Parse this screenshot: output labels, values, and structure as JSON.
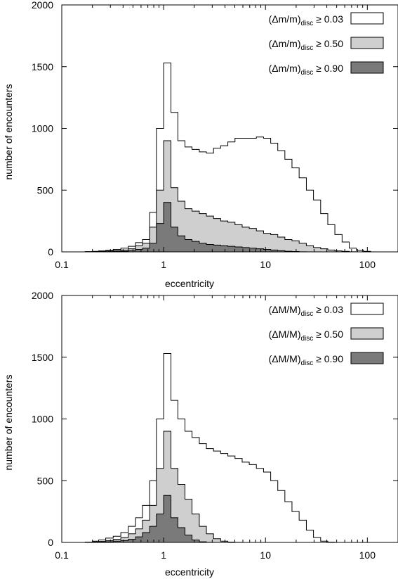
{
  "chart_data": [
    {
      "type": "histogram",
      "xlabel": "eccentricity",
      "ylabel": "number of encounters",
      "xscale": "log",
      "xlim": [
        0.1,
        200
      ],
      "ylim": [
        0,
        2000
      ],
      "xticks": [
        "0.1",
        "1",
        "10",
        "100"
      ],
      "yticks": [
        "0",
        "500",
        "1000",
        "1500",
        "2000"
      ],
      "grid": false,
      "legend_position": "top-right",
      "bin_edges": [
        0.1,
        0.12,
        0.14,
        0.17,
        0.2,
        0.23,
        0.27,
        0.32,
        0.38,
        0.45,
        0.53,
        0.62,
        0.73,
        0.85,
        1.0,
        1.18,
        1.38,
        1.62,
        1.9,
        2.24,
        2.63,
        3.09,
        3.63,
        4.27,
        5.02,
        5.9,
        6.93,
        8.14,
        9.57,
        11.25,
        13.2,
        15.5,
        18.2,
        21.4,
        25.2,
        29.6,
        34.8,
        40.9,
        48.0,
        56.5,
        66.4,
        78.0,
        91.6,
        107.7,
        126.5,
        148.7,
        174.8,
        200.0
      ],
      "legend": [
        {
          "prefix": "(Δm/m)",
          "sub": "disc",
          "suffix": " ≥ 0.03"
        },
        {
          "prefix": "(Δm/m)",
          "sub": "disc",
          "suffix": " ≥ 0.50"
        },
        {
          "prefix": "(Δm/m)",
          "sub": "disc",
          "suffix": " ≥ 0.90"
        }
      ],
      "series": [
        {
          "fill": "#ffffff",
          "values": [
            0,
            0,
            0,
            2,
            4,
            8,
            12,
            20,
            30,
            45,
            75,
            100,
            320,
            1000,
            1530,
            1130,
            900,
            850,
            830,
            810,
            800,
            840,
            860,
            890,
            920,
            920,
            920,
            930,
            920,
            880,
            820,
            750,
            680,
            600,
            500,
            420,
            310,
            220,
            140,
            80,
            30,
            12,
            4,
            0,
            0,
            0,
            0
          ]
        },
        {
          "fill": "#cfcfcf",
          "values": [
            0,
            0,
            0,
            1,
            2,
            4,
            8,
            10,
            15,
            25,
            50,
            70,
            200,
            500,
            900,
            520,
            410,
            350,
            330,
            310,
            290,
            270,
            250,
            240,
            220,
            200,
            190,
            170,
            150,
            140,
            120,
            100,
            90,
            70,
            50,
            35,
            25,
            15,
            8,
            4,
            1,
            0,
            0,
            0,
            0,
            0,
            0
          ]
        },
        {
          "fill": "#7a7a7a",
          "values": [
            0,
            0,
            0,
            0,
            0,
            1,
            2,
            4,
            5,
            10,
            20,
            30,
            70,
            230,
            400,
            200,
            130,
            100,
            85,
            70,
            60,
            55,
            50,
            45,
            40,
            35,
            30,
            25,
            20,
            15,
            10,
            5,
            3,
            1,
            0,
            0,
            0,
            0,
            0,
            0,
            0,
            0,
            0,
            0,
            0,
            0,
            0
          ]
        }
      ]
    },
    {
      "type": "histogram",
      "xlabel": "eccentricity",
      "ylabel": "number of encounters",
      "xscale": "log",
      "xlim": [
        0.1,
        200
      ],
      "ylim": [
        0,
        2000
      ],
      "xticks": [
        "0.1",
        "1",
        "10",
        "100"
      ],
      "yticks": [
        "0",
        "500",
        "1000",
        "1500",
        "2000"
      ],
      "grid": false,
      "legend_position": "top-right",
      "bin_edges": [
        0.1,
        0.12,
        0.14,
        0.17,
        0.2,
        0.23,
        0.27,
        0.32,
        0.38,
        0.45,
        0.53,
        0.62,
        0.73,
        0.85,
        1.0,
        1.18,
        1.38,
        1.62,
        1.9,
        2.24,
        2.63,
        3.09,
        3.63,
        4.27,
        5.02,
        5.9,
        6.93,
        8.14,
        9.57,
        11.25,
        13.2,
        15.5,
        18.2,
        21.4,
        25.2,
        29.6,
        34.8,
        40.9,
        48.0,
        56.5,
        66.4,
        78.0,
        91.6,
        107.7,
        126.5,
        148.7,
        174.8,
        200.0
      ],
      "legend": [
        {
          "prefix": "(ΔM/M)",
          "sub": "disc",
          "suffix": " ≥ 0.03"
        },
        {
          "prefix": "(ΔM/M)",
          "sub": "disc",
          "suffix": " ≥ 0.50"
        },
        {
          "prefix": "(ΔM/M)",
          "sub": "disc",
          "suffix": " ≥ 0.90"
        }
      ],
      "series": [
        {
          "fill": "#ffffff",
          "values": [
            0,
            0,
            0,
            3,
            10,
            20,
            35,
            50,
            80,
            130,
            200,
            300,
            500,
            1000,
            1530,
            1150,
            1000,
            900,
            850,
            800,
            760,
            740,
            720,
            700,
            680,
            650,
            630,
            600,
            570,
            500,
            420,
            330,
            250,
            180,
            100,
            40,
            10,
            2,
            0,
            0,
            0,
            0,
            0,
            0,
            0,
            0,
            0
          ]
        },
        {
          "fill": "#cfcfcf",
          "values": [
            0,
            0,
            0,
            1,
            4,
            8,
            15,
            25,
            40,
            70,
            110,
            180,
            300,
            600,
            900,
            600,
            470,
            350,
            230,
            130,
            70,
            30,
            10,
            3,
            1,
            0,
            0,
            0,
            0,
            0,
            0,
            0,
            0,
            0,
            0,
            0,
            0,
            0,
            0,
            0,
            0,
            0,
            0,
            0,
            0,
            0,
            0
          ]
        },
        {
          "fill": "#7a7a7a",
          "values": [
            0,
            0,
            0,
            0,
            1,
            3,
            6,
            10,
            15,
            25,
            45,
            80,
            130,
            230,
            380,
            200,
            120,
            60,
            20,
            5,
            1,
            0,
            0,
            0,
            0,
            0,
            0,
            0,
            0,
            0,
            0,
            0,
            0,
            0,
            0,
            0,
            0,
            0,
            0,
            0,
            0,
            0,
            0,
            0,
            0,
            0,
            0
          ]
        }
      ]
    }
  ]
}
